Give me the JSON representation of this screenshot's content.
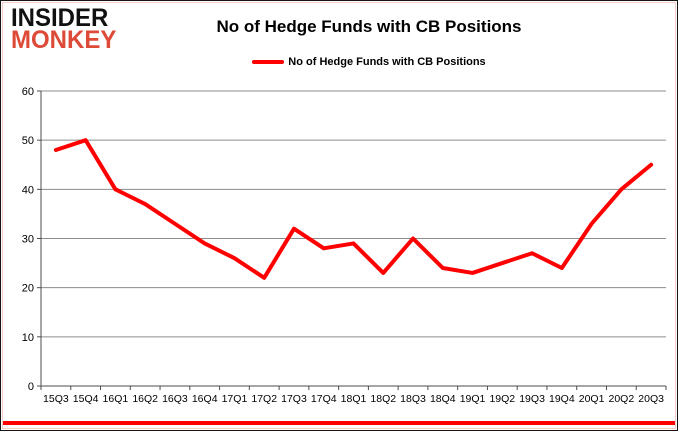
{
  "logo": {
    "line1": "INSIDER",
    "line2": "MONKEY"
  },
  "header": {
    "title": "No of Hedge Funds with CB Positions"
  },
  "legend": {
    "label": "No of Hedge Funds with CB Positions",
    "line_color": "#ff0000"
  },
  "chart_data": {
    "type": "line",
    "title": "No of Hedge Funds with CB Positions",
    "series_name": "No of Hedge Funds with CB Positions",
    "categories": [
      "15Q3",
      "15Q4",
      "16Q1",
      "16Q2",
      "16Q3",
      "16Q4",
      "17Q1",
      "17Q2",
      "17Q3",
      "17Q4",
      "18Q1",
      "18Q2",
      "18Q3",
      "18Q4",
      "19Q1",
      "19Q2",
      "19Q3",
      "19Q4",
      "20Q1",
      "20Q2",
      "20Q3"
    ],
    "values": [
      48,
      50,
      40,
      37,
      33,
      29,
      26,
      22,
      32,
      28,
      29,
      23,
      30,
      24,
      23,
      25,
      27,
      24,
      33,
      40,
      45
    ],
    "xlabel": "",
    "ylabel": "",
    "ylim": [
      0,
      60
    ],
    "yticks": [
      0,
      10,
      20,
      30,
      40,
      50,
      60
    ],
    "grid": true,
    "legend_position": "top-center",
    "line_color": "#ff0000"
  },
  "colors": {
    "accent_red": "#ff0000",
    "logo_red": "#dd4b38",
    "grid": "#8c8c8c",
    "axis": "#4d4d4d",
    "text": "#000000",
    "frame": "#161616",
    "inner_tint": "#f6cdc9"
  }
}
